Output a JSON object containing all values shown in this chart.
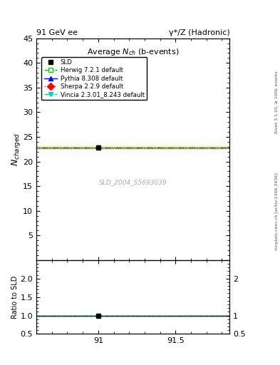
{
  "title_left": "91 GeV ee",
  "title_right": "γ*/Z (Hadronic)",
  "plot_title": "Average $N_{ch}$ (b-events)",
  "ylabel_main": "$N_{charged}$",
  "ylabel_ratio": "Ratio to SLD",
  "right_label_top": "Rivet 3.1.10, ≥ 100k events",
  "right_label_bottom": "mcplots.cern.ch [arXiv:1306.3436]",
  "watermark": "SLD_2004_S5693039",
  "xlim": [
    90.6,
    91.85
  ],
  "xticks": [
    91.0,
    91.5
  ],
  "ylim_main": [
    0,
    45
  ],
  "yticks_main": [
    5,
    10,
    15,
    20,
    25,
    30,
    35,
    40,
    45
  ],
  "ylim_ratio": [
    0.5,
    2.5
  ],
  "yticks_ratio": [
    0.5,
    1.0,
    1.5,
    2.0
  ],
  "data_x": 91.0,
  "data_y": 22.9,
  "data_yerr": 0.3,
  "data_label": "SLD",
  "data_color": "black",
  "lines": [
    {
      "label": "Herwig 7.2.1 default",
      "color": "#00cc00",
      "linestyle": "--",
      "marker": "s",
      "markerfacecolor": "white",
      "markeredgecolor": "#00cc00",
      "value": 22.85,
      "ratio": 0.9978
    },
    {
      "label": "Pythia 8.308 default",
      "color": "#0000ff",
      "linestyle": "-",
      "marker": "^",
      "markerfacecolor": "#0000ff",
      "markeredgecolor": "#0000ff",
      "value": 22.88,
      "ratio": 0.9991
    },
    {
      "label": "Sherpa 2.2.9 default",
      "color": "#ff0000",
      "linestyle": ":",
      "marker": "D",
      "markerfacecolor": "#ff0000",
      "markeredgecolor": "#ff0000",
      "value": 22.75,
      "ratio": 0.9934
    },
    {
      "label": "Vincia 2.3.01_8.243 default",
      "color": "#00cccc",
      "linestyle": "-.",
      "marker": "v",
      "markerfacecolor": "#00cccc",
      "markeredgecolor": "#00cccc",
      "value": 22.82,
      "ratio": 0.9965
    }
  ],
  "band_color": "#ffff99",
  "band_alpha": 0.85
}
